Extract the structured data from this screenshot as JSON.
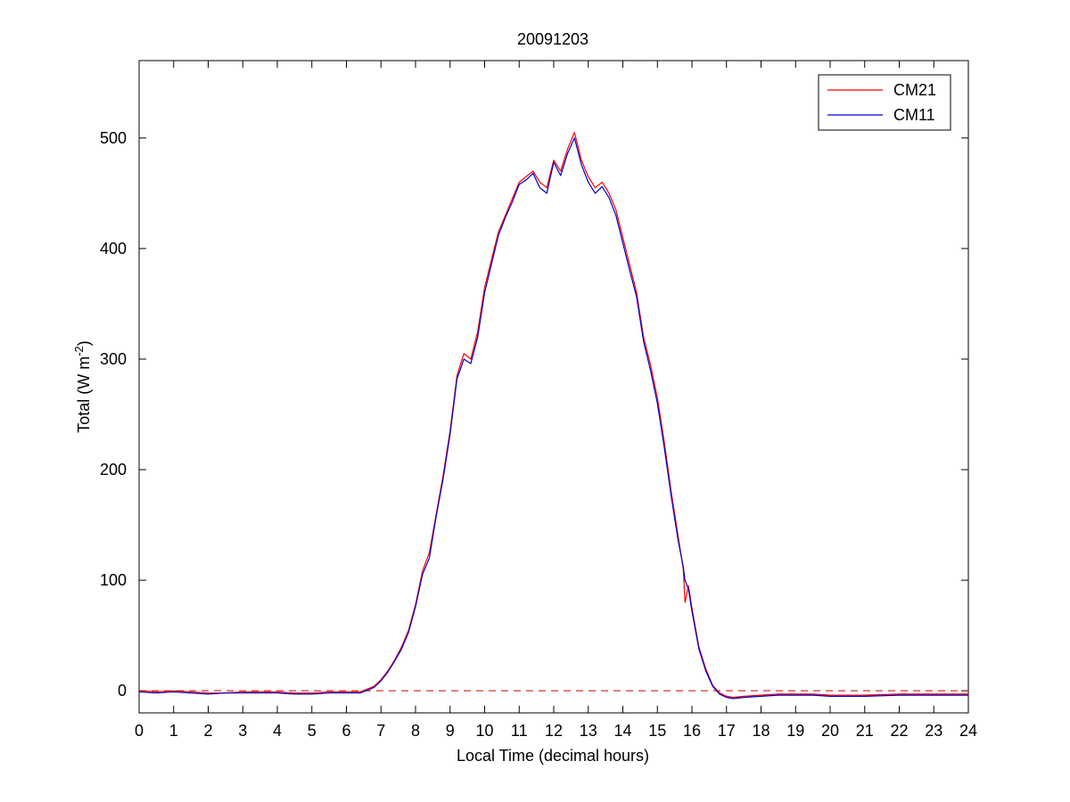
{
  "chart_data": {
    "type": "line",
    "title": "20091203",
    "xlabel": "Local Time (decimal hours)",
    "ylabel_prefix": "Total (W m",
    "ylabel_exponent": "-2",
    "ylabel_suffix": ")",
    "xlim": [
      0,
      24
    ],
    "ylim": [
      -20,
      570
    ],
    "xticks": [
      0,
      1,
      2,
      3,
      4,
      5,
      6,
      7,
      8,
      9,
      10,
      11,
      12,
      13,
      14,
      15,
      16,
      17,
      18,
      19,
      20,
      21,
      22,
      23,
      24
    ],
    "yticks": [
      0,
      100,
      200,
      300,
      400,
      500
    ],
    "grid": false,
    "legend_position": "top-right",
    "reference_line": {
      "y": 0,
      "color": "#cc0000",
      "style": "dashed"
    },
    "series": [
      {
        "name": "CM21",
        "color": "#ff0000",
        "x": [
          0,
          0.5,
          1,
          1.5,
          2,
          2.5,
          3,
          3.5,
          4,
          4.5,
          5,
          5.5,
          6,
          6.4,
          6.8,
          7,
          7.2,
          7.4,
          7.6,
          7.8,
          8,
          8.2,
          8.4,
          8.6,
          8.8,
          9,
          9.2,
          9.4,
          9.6,
          9.8,
          10,
          10.2,
          10.4,
          10.6,
          10.8,
          11,
          11.2,
          11.4,
          11.6,
          11.8,
          12,
          12.2,
          12.4,
          12.6,
          12.8,
          13,
          13.2,
          13.4,
          13.6,
          13.8,
          14,
          14.2,
          14.4,
          14.6,
          14.8,
          15,
          15.2,
          15.4,
          15.6,
          15.75,
          15.8,
          15.9,
          16,
          16.2,
          16.4,
          16.6,
          16.8,
          17,
          17.2,
          17.5,
          18,
          18.5,
          19,
          19.5,
          20,
          21,
          22,
          23,
          24
        ],
        "y": [
          0,
          -1,
          0,
          -1,
          -2,
          -2,
          -1,
          -1,
          -1,
          -2,
          -2,
          -1,
          -1,
          -1,
          4,
          10,
          18,
          28,
          40,
          55,
          78,
          108,
          125,
          160,
          195,
          235,
          285,
          305,
          300,
          325,
          365,
          390,
          415,
          430,
          445,
          460,
          465,
          470,
          460,
          455,
          480,
          470,
          490,
          505,
          480,
          465,
          455,
          460,
          450,
          435,
          410,
          385,
          360,
          320,
          295,
          265,
          225,
          180,
          140,
          110,
          80,
          95,
          75,
          40,
          20,
          5,
          -2,
          -5,
          -6,
          -5,
          -4,
          -3,
          -3,
          -3,
          -4,
          -4,
          -3,
          -3,
          -3
        ]
      },
      {
        "name": "CM11",
        "color": "#0000cc",
        "x": [
          0,
          0.5,
          1,
          1.5,
          2,
          2.5,
          3,
          3.5,
          4,
          4.5,
          5,
          5.5,
          6,
          6.4,
          6.8,
          7,
          7.2,
          7.4,
          7.6,
          7.8,
          8,
          8.2,
          8.4,
          8.6,
          8.8,
          9,
          9.2,
          9.4,
          9.6,
          9.8,
          10,
          10.2,
          10.4,
          10.6,
          10.8,
          11,
          11.2,
          11.4,
          11.6,
          11.8,
          12,
          12.2,
          12.4,
          12.6,
          12.8,
          13,
          13.2,
          13.4,
          13.6,
          13.8,
          14,
          14.2,
          14.4,
          14.6,
          14.8,
          15,
          15.2,
          15.4,
          15.6,
          15.75,
          15.8,
          15.9,
          16,
          16.2,
          16.4,
          16.6,
          16.8,
          17,
          17.2,
          17.5,
          18,
          18.5,
          19,
          19.5,
          20,
          21,
          22,
          23,
          24
        ],
        "y": [
          -1,
          -2,
          -1,
          -2,
          -3,
          -2,
          -2,
          -2,
          -2,
          -3,
          -3,
          -2,
          -2,
          -2,
          3,
          9,
          17,
          27,
          38,
          53,
          76,
          105,
          120,
          158,
          192,
          232,
          282,
          300,
          296,
          320,
          360,
          386,
          412,
          428,
          442,
          458,
          462,
          468,
          455,
          450,
          478,
          466,
          486,
          500,
          476,
          460,
          450,
          456,
          446,
          430,
          405,
          380,
          356,
          316,
          290,
          260,
          220,
          176,
          136,
          112,
          100,
          92,
          72,
          38,
          18,
          4,
          -3,
          -6,
          -7,
          -6,
          -5,
          -4,
          -4,
          -4,
          -5,
          -5,
          -4,
          -4,
          -4
        ]
      }
    ]
  }
}
